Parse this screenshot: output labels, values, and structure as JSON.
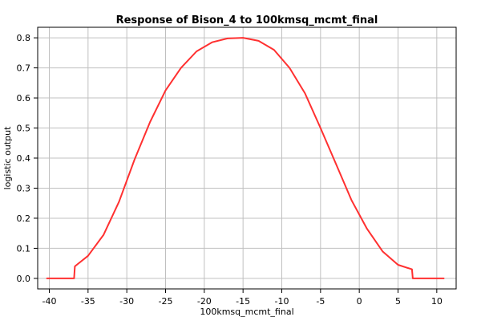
{
  "chart_data": {
    "type": "line",
    "title": "Response of Bison_4 to 100kmsq_mcmt_final",
    "xlabel": "100kmsq_mcmt_final",
    "ylabel": "logistic output",
    "xlim": [
      -41.5,
      12.5
    ],
    "ylim": [
      -0.035,
      0.835
    ],
    "xticks": [
      -40,
      -35,
      -30,
      -25,
      -20,
      -15,
      -10,
      -5,
      0,
      5,
      10
    ],
    "yticks": [
      0.0,
      0.1,
      0.2,
      0.3,
      0.4,
      0.5,
      0.6,
      0.7,
      0.8
    ],
    "ytick_labels": [
      "0.0",
      "0.1",
      "0.2",
      "0.3",
      "0.4",
      "0.5",
      "0.6",
      "0.7",
      "0.8"
    ],
    "grid": true,
    "series": [
      {
        "color": "#ff3030",
        "x": [
          -40.3,
          -36.8,
          -36.7,
          -35.0,
          -33.0,
          -31.0,
          -29.0,
          -27.0,
          -25.0,
          -23.0,
          -21.0,
          -19.0,
          -17.0,
          -15.0,
          -13.0,
          -11.0,
          -9.0,
          -7.0,
          -5.0,
          -3.0,
          -1.0,
          1.0,
          3.0,
          5.0,
          6.8,
          6.9,
          10.9
        ],
        "y": [
          0.0,
          0.0,
          0.04,
          0.075,
          0.145,
          0.255,
          0.395,
          0.52,
          0.625,
          0.7,
          0.755,
          0.785,
          0.798,
          0.8,
          0.79,
          0.76,
          0.7,
          0.615,
          0.5,
          0.38,
          0.26,
          0.165,
          0.09,
          0.045,
          0.03,
          0.0,
          0.0
        ]
      }
    ]
  }
}
